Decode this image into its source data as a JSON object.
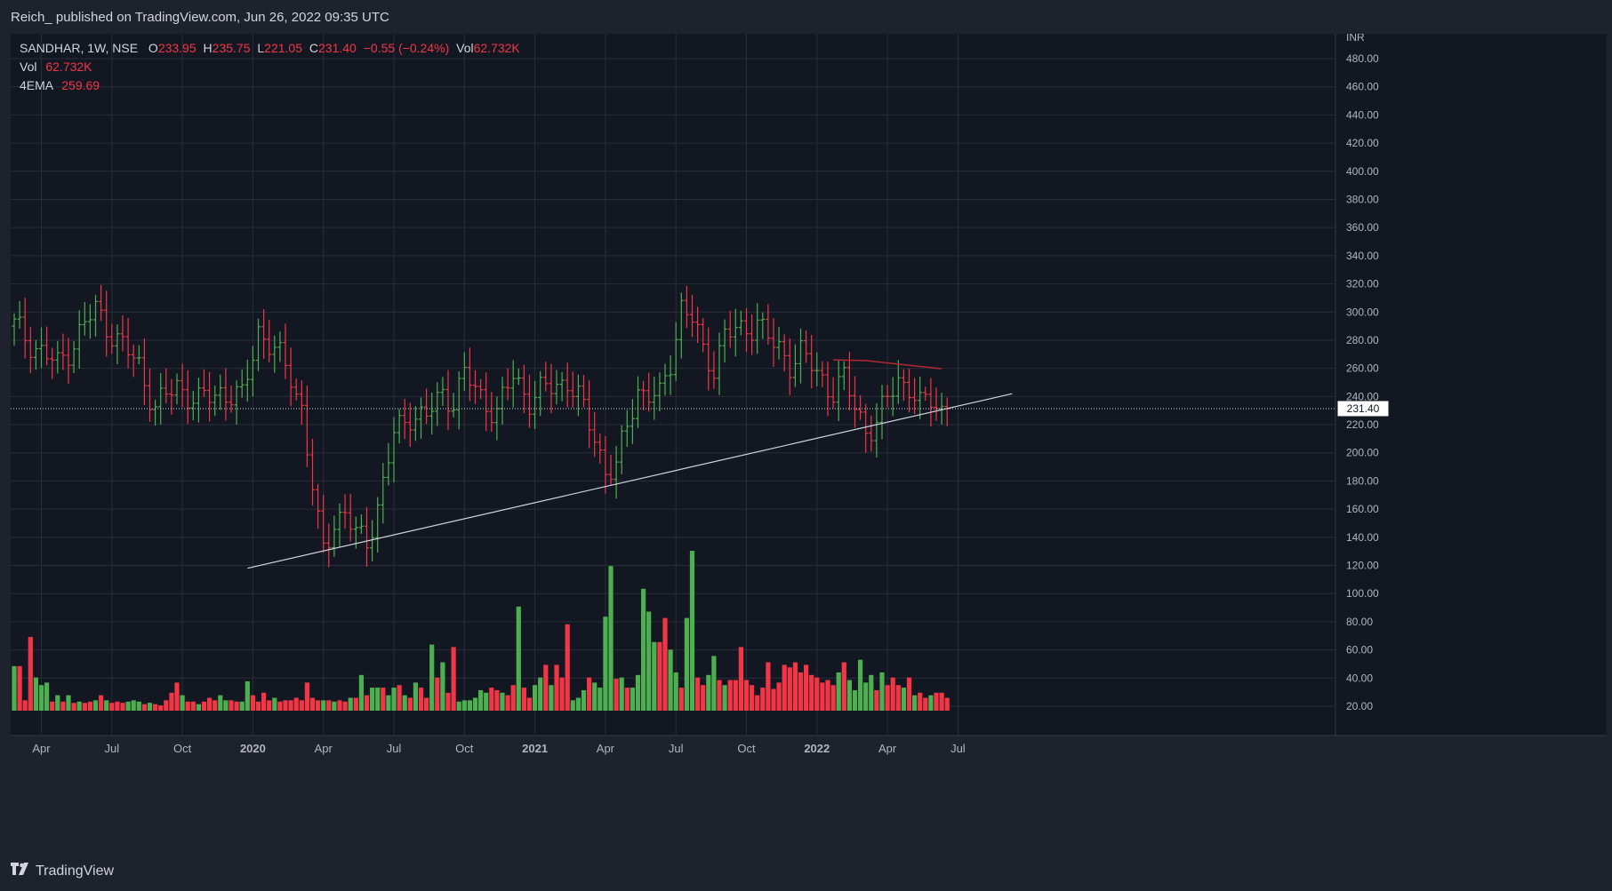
{
  "header": {
    "published": "Reich_ published on TradingView.com, Jun 26, 2022 09:35 UTC"
  },
  "legend": {
    "symbol": "SANDHAR, 1W, NSE",
    "o_label": "O",
    "o": "233.95",
    "h_label": "H",
    "h": "235.75",
    "l_label": "L",
    "l": "221.05",
    "c_label": "C",
    "c": "231.40",
    "change": "−0.55 (−0.24%)",
    "vol_label": "Vol",
    "vol": "62.732K",
    "vol2_label": "Vol",
    "vol2": "62.732K",
    "ema_label": "4EMA",
    "ema": "259.69"
  },
  "footer": {
    "brand": "TradingView"
  },
  "colors": {
    "background": "#131722",
    "frame": "#1e222d",
    "grid": "#2a2e39",
    "up": "#26a69a",
    "up_bar": "#4caf50",
    "down": "#f23645",
    "ema": "#b22833",
    "trendline": "#d1d4dc",
    "axis_text": "#b2b5be"
  },
  "chart_data": {
    "type": "ohlc",
    "timeframe": "1W",
    "currency_label": "INR",
    "last_price_label": "231.40",
    "last_price": 231.4,
    "y_ticks": [
      "480.00",
      "460.00",
      "440.00",
      "420.00",
      "400.00",
      "380.00",
      "360.00",
      "340.00",
      "320.00",
      "300.00",
      "280.00",
      "260.00",
      "240.00",
      "220.00",
      "200.00",
      "180.00",
      "160.00",
      "140.00",
      "120.00",
      "100.00",
      "80.00",
      "60.00",
      "40.00",
      "20.00"
    ],
    "y_tick_values": [
      480,
      460,
      440,
      420,
      400,
      380,
      360,
      340,
      320,
      300,
      280,
      260,
      240,
      220,
      200,
      180,
      160,
      140,
      120,
      100,
      80,
      60,
      40,
      20
    ],
    "ylim": [
      8,
      490
    ],
    "x_ticks": [
      {
        "label": "Apr",
        "week": 5
      },
      {
        "label": "Jul",
        "week": 18
      },
      {
        "label": "Oct",
        "week": 31
      },
      {
        "label": "2020",
        "week": 44
      },
      {
        "label": "Apr",
        "week": 57
      },
      {
        "label": "Jul",
        "week": 70
      },
      {
        "label": "Oct",
        "week": 83
      },
      {
        "label": "2021",
        "week": 96
      },
      {
        "label": "Apr",
        "week": 109
      },
      {
        "label": "Jul",
        "week": 122
      },
      {
        "label": "Oct",
        "week": 135
      },
      {
        "label": "2022",
        "week": 148
      },
      {
        "label": "Apr",
        "week": 161
      },
      {
        "label": "Jul",
        "week": 174
      }
    ],
    "price_path_keypoints": [
      [
        0,
        290
      ],
      [
        4,
        275
      ],
      [
        8,
        262
      ],
      [
        12,
        285
      ],
      [
        15,
        302
      ],
      [
        19,
        280
      ],
      [
        23,
        262
      ],
      [
        26,
        232
      ],
      [
        30,
        248
      ],
      [
        34,
        236
      ],
      [
        38,
        244
      ],
      [
        42,
        238
      ],
      [
        45,
        288
      ],
      [
        48,
        272
      ],
      [
        51,
        255
      ],
      [
        53,
        232
      ],
      [
        55,
        175
      ],
      [
        56,
        148
      ],
      [
        57,
        130
      ],
      [
        59,
        152
      ],
      [
        61,
        158
      ],
      [
        63,
        140
      ],
      [
        65,
        138
      ],
      [
        67,
        162
      ],
      [
        70,
        212
      ],
      [
        73,
        228
      ],
      [
        76,
        225
      ],
      [
        79,
        242
      ],
      [
        81,
        238
      ],
      [
        83,
        255
      ],
      [
        86,
        240
      ],
      [
        89,
        228
      ],
      [
        92,
        255
      ],
      [
        95,
        238
      ],
      [
        98,
        245
      ],
      [
        102,
        252
      ],
      [
        104,
        238
      ],
      [
        107,
        212
      ],
      [
        109,
        188
      ],
      [
        111,
        188
      ],
      [
        113,
        220
      ],
      [
        115,
        245
      ],
      [
        119,
        238
      ],
      [
        121,
        265
      ],
      [
        123,
        305
      ],
      [
        125,
        295
      ],
      [
        127,
        270
      ],
      [
        129,
        262
      ],
      [
        131,
        285
      ],
      [
        134,
        285
      ],
      [
        137,
        295
      ],
      [
        140,
        275
      ],
      [
        143,
        265
      ],
      [
        145,
        272
      ],
      [
        148,
        255
      ],
      [
        151,
        245
      ],
      [
        153,
        252
      ],
      [
        155,
        232
      ],
      [
        157,
        218
      ],
      [
        159,
        220
      ],
      [
        161,
        238
      ],
      [
        163,
        252
      ],
      [
        165,
        248
      ],
      [
        167,
        232
      ],
      [
        169,
        238
      ],
      [
        171,
        231
      ]
    ],
    "volume_bars": [
      {
        "v": 45,
        "up": true
      },
      {
        "v": 45,
        "up": false
      },
      {
        "v": 18,
        "up": false
      },
      {
        "v": 68,
        "up": false
      },
      {
        "v": 36,
        "up": true
      },
      {
        "v": 30,
        "up": true
      },
      {
        "v": 32,
        "up": true
      },
      {
        "v": 17,
        "up": false
      },
      {
        "v": 22,
        "up": true
      },
      {
        "v": 17,
        "up": false
      },
      {
        "v": 22,
        "up": true
      },
      {
        "v": 16,
        "up": false
      },
      {
        "v": 17,
        "up": true
      },
      {
        "v": 16,
        "up": false
      },
      {
        "v": 17,
        "up": false
      },
      {
        "v": 18,
        "up": true
      },
      {
        "v": 22,
        "up": false
      },
      {
        "v": 18,
        "up": true
      },
      {
        "v": 16,
        "up": false
      },
      {
        "v": 17,
        "up": false
      },
      {
        "v": 16,
        "up": false
      },
      {
        "v": 17,
        "up": true
      },
      {
        "v": 18,
        "up": true
      },
      {
        "v": 17,
        "up": true
      },
      {
        "v": 15,
        "up": false
      },
      {
        "v": 16,
        "up": true
      },
      {
        "v": 15,
        "up": false
      },
      {
        "v": 14,
        "up": false
      },
      {
        "v": 18,
        "up": false
      },
      {
        "v": 24,
        "up": false
      },
      {
        "v": 32,
        "up": false
      },
      {
        "v": 22,
        "up": true
      },
      {
        "v": 17,
        "up": false
      },
      {
        "v": 17,
        "up": false
      },
      {
        "v": 15,
        "up": true
      },
      {
        "v": 17,
        "up": false
      },
      {
        "v": 20,
        "up": false
      },
      {
        "v": 18,
        "up": false
      },
      {
        "v": 22,
        "up": true
      },
      {
        "v": 18,
        "up": true
      },
      {
        "v": 18,
        "up": false
      },
      {
        "v": 17,
        "up": false
      },
      {
        "v": 17,
        "up": true
      },
      {
        "v": 33,
        "up": true
      },
      {
        "v": 22,
        "up": false
      },
      {
        "v": 17,
        "up": false
      },
      {
        "v": 24,
        "up": false
      },
      {
        "v": 18,
        "up": false
      },
      {
        "v": 20,
        "up": true
      },
      {
        "v": 17,
        "up": false
      },
      {
        "v": 18,
        "up": false
      },
      {
        "v": 18,
        "up": false
      },
      {
        "v": 20,
        "up": false
      },
      {
        "v": 18,
        "up": false
      },
      {
        "v": 32,
        "up": false
      },
      {
        "v": 20,
        "up": false
      },
      {
        "v": 18,
        "up": false
      },
      {
        "v": 18,
        "up": true
      },
      {
        "v": 18,
        "up": false
      },
      {
        "v": 17,
        "up": true
      },
      {
        "v": 18,
        "up": false
      },
      {
        "v": 17,
        "up": false
      },
      {
        "v": 20,
        "up": true
      },
      {
        "v": 20,
        "up": false
      },
      {
        "v": 38,
        "up": true
      },
      {
        "v": 22,
        "up": false
      },
      {
        "v": 28,
        "up": true
      },
      {
        "v": 28,
        "up": true
      },
      {
        "v": 28,
        "up": false
      },
      {
        "v": 22,
        "up": true
      },
      {
        "v": 28,
        "up": true
      },
      {
        "v": 30,
        "up": false
      },
      {
        "v": 22,
        "up": true
      },
      {
        "v": 20,
        "up": false
      },
      {
        "v": 32,
        "up": true
      },
      {
        "v": 28,
        "up": false
      },
      {
        "v": 20,
        "up": false
      },
      {
        "v": 62,
        "up": true
      },
      {
        "v": 36,
        "up": false
      },
      {
        "v": 48,
        "up": true
      },
      {
        "v": 24,
        "up": false
      },
      {
        "v": 60,
        "up": false
      },
      {
        "v": 17,
        "up": true
      },
      {
        "v": 18,
        "up": true
      },
      {
        "v": 18,
        "up": true
      },
      {
        "v": 20,
        "up": true
      },
      {
        "v": 26,
        "up": true
      },
      {
        "v": 24,
        "up": true
      },
      {
        "v": 28,
        "up": false
      },
      {
        "v": 26,
        "up": false
      },
      {
        "v": 24,
        "up": true
      },
      {
        "v": 22,
        "up": false
      },
      {
        "v": 30,
        "up": false
      },
      {
        "v": 92,
        "up": true
      },
      {
        "v": 28,
        "up": false
      },
      {
        "v": 20,
        "up": false
      },
      {
        "v": 30,
        "up": true
      },
      {
        "v": 36,
        "up": true
      },
      {
        "v": 46,
        "up": false
      },
      {
        "v": 30,
        "up": true
      },
      {
        "v": 46,
        "up": false
      },
      {
        "v": 36,
        "up": false
      },
      {
        "v": 78,
        "up": false
      },
      {
        "v": 18,
        "up": true
      },
      {
        "v": 20,
        "up": true
      },
      {
        "v": 26,
        "up": true
      },
      {
        "v": 36,
        "up": false
      },
      {
        "v": 32,
        "up": true
      },
      {
        "v": 28,
        "up": true
      },
      {
        "v": 84,
        "up": true
      },
      {
        "v": 124,
        "up": true
      },
      {
        "v": 35,
        "up": false
      },
      {
        "v": 36,
        "up": true
      },
      {
        "v": 28,
        "up": false
      },
      {
        "v": 28,
        "up": true
      },
      {
        "v": 38,
        "up": true
      },
      {
        "v": 106,
        "up": true
      },
      {
        "v": 88,
        "up": true
      },
      {
        "v": 64,
        "up": true
      },
      {
        "v": 64,
        "up": false
      },
      {
        "v": 83,
        "up": false
      },
      {
        "v": 58,
        "up": true
      },
      {
        "v": 40,
        "up": true
      },
      {
        "v": 28,
        "up": false
      },
      {
        "v": 83,
        "up": true
      },
      {
        "v": 136,
        "up": true
      },
      {
        "v": 36,
        "up": false
      },
      {
        "v": 30,
        "up": false
      },
      {
        "v": 38,
        "up": true
      },
      {
        "v": 53,
        "up": true
      },
      {
        "v": 34,
        "up": false
      },
      {
        "v": 30,
        "up": true
      },
      {
        "v": 34,
        "up": false
      },
      {
        "v": 34,
        "up": false
      },
      {
        "v": 60,
        "up": false
      },
      {
        "v": 34,
        "up": false
      },
      {
        "v": 30,
        "up": false
      },
      {
        "v": 22,
        "up": false
      },
      {
        "v": 28,
        "up": false
      },
      {
        "v": 48,
        "up": false
      },
      {
        "v": 27,
        "up": false
      },
      {
        "v": 32,
        "up": false
      },
      {
        "v": 46,
        "up": false
      },
      {
        "v": 44,
        "up": false
      },
      {
        "v": 48,
        "up": false
      },
      {
        "v": 40,
        "up": false
      },
      {
        "v": 46,
        "up": false
      },
      {
        "v": 38,
        "up": false
      },
      {
        "v": 36,
        "up": false
      },
      {
        "v": 32,
        "up": false
      },
      {
        "v": 34,
        "up": false
      },
      {
        "v": 30,
        "up": false
      },
      {
        "v": 40,
        "up": true
      },
      {
        "v": 48,
        "up": false
      },
      {
        "v": 34,
        "up": true
      },
      {
        "v": 26,
        "up": true
      },
      {
        "v": 50,
        "up": true
      },
      {
        "v": 32,
        "up": true
      },
      {
        "v": 38,
        "up": true
      },
      {
        "v": 26,
        "up": false
      },
      {
        "v": 40,
        "up": true
      },
      {
        "v": 30,
        "up": false
      },
      {
        "v": 36,
        "up": false
      },
      {
        "v": 30,
        "up": false
      },
      {
        "v": 28,
        "up": true
      },
      {
        "v": 36,
        "up": false
      },
      {
        "v": 22,
        "up": true
      },
      {
        "v": 24,
        "up": false
      },
      {
        "v": 20,
        "up": false
      },
      {
        "v": 22,
        "up": true
      },
      {
        "v": 24,
        "up": false
      },
      {
        "v": 24,
        "up": false
      },
      {
        "v": 20,
        "up": false
      }
    ],
    "ema_segment": {
      "from_week": 151,
      "from_value": 266,
      "to_week": 171,
      "to_value": 259.69
    },
    "trendline": {
      "from_week": 43,
      "from_value": 118,
      "to_week": 184,
      "to_value": 242
    }
  }
}
